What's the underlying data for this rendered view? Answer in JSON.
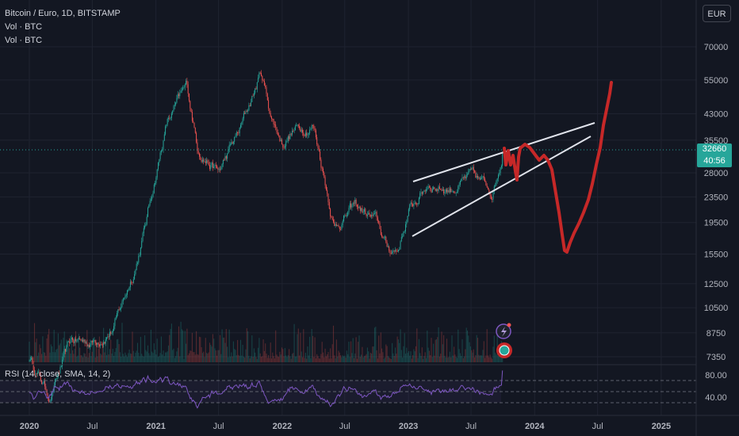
{
  "legend": {
    "symbol": "Bitcoin / Euro, 1D, BITSTAMP",
    "vol1": "Vol · BTC",
    "vol2": "Vol · BTC"
  },
  "currency_button": "EUR",
  "current_price": {
    "value": "32660",
    "countdown": "40:56"
  },
  "rsi": {
    "title": "RSI (14, close, SMA, 14, 2)",
    "levels": [
      "80.00",
      "40.00"
    ]
  },
  "colors": {
    "background": "#131722",
    "up": "#26a69a",
    "down": "#ef5350",
    "rsi_line": "#7e57c2",
    "drawing_red": "#c62828",
    "trendline": "#e0e3eb"
  },
  "icons": [
    "lightning-icon",
    "earnings-icon"
  ],
  "chart_data": {
    "type": "candlestick",
    "title": "Bitcoin / Euro, 1D, BITSTAMP",
    "price_scale": "log",
    "y_ticks": [
      70000,
      55000,
      43000,
      35500,
      28000,
      23500,
      19500,
      15500,
      12500,
      10500,
      8750,
      7350
    ],
    "x_ticks": [
      "2020",
      "Jul",
      "2021",
      "Jul",
      "2022",
      "Jul",
      "2023",
      "Jul",
      "2024",
      "Jul",
      "2025"
    ],
    "price_path": [
      {
        "date": "2020-01",
        "price": 7300
      },
      {
        "date": "2020-03",
        "price": 5500
      },
      {
        "date": "2020-05",
        "price": 8200
      },
      {
        "date": "2020-07",
        "price": 8200
      },
      {
        "date": "2020-09",
        "price": 9100
      },
      {
        "date": "2020-11",
        "price": 14000
      },
      {
        "date": "2020-12",
        "price": 19000
      },
      {
        "date": "2021-01",
        "price": 28000
      },
      {
        "date": "2021-02",
        "price": 40000
      },
      {
        "date": "2021-04",
        "price": 52000
      },
      {
        "date": "2021-05",
        "price": 34000
      },
      {
        "date": "2021-07",
        "price": 28000
      },
      {
        "date": "2021-09",
        "price": 38000
      },
      {
        "date": "2021-11",
        "price": 58000
      },
      {
        "date": "2021-12",
        "price": 42000
      },
      {
        "date": "2022-01",
        "price": 35000
      },
      {
        "date": "2022-02",
        "price": 38000
      },
      {
        "date": "2022-04",
        "price": 40000
      },
      {
        "date": "2022-05",
        "price": 28000
      },
      {
        "date": "2022-06",
        "price": 19000
      },
      {
        "date": "2022-08",
        "price": 22000
      },
      {
        "date": "2022-10",
        "price": 19500
      },
      {
        "date": "2022-11",
        "price": 16000
      },
      {
        "date": "2022-12",
        "price": 16000
      },
      {
        "date": "2023-01",
        "price": 21000
      },
      {
        "date": "2023-03",
        "price": 26000
      },
      {
        "date": "2023-05",
        "price": 25000
      },
      {
        "date": "2023-07",
        "price": 27000
      },
      {
        "date": "2023-09",
        "price": 24500
      },
      {
        "date": "2023-10",
        "price": 32660
      }
    ],
    "current_price": 32660,
    "rsi_levels": [
      80,
      40
    ]
  }
}
